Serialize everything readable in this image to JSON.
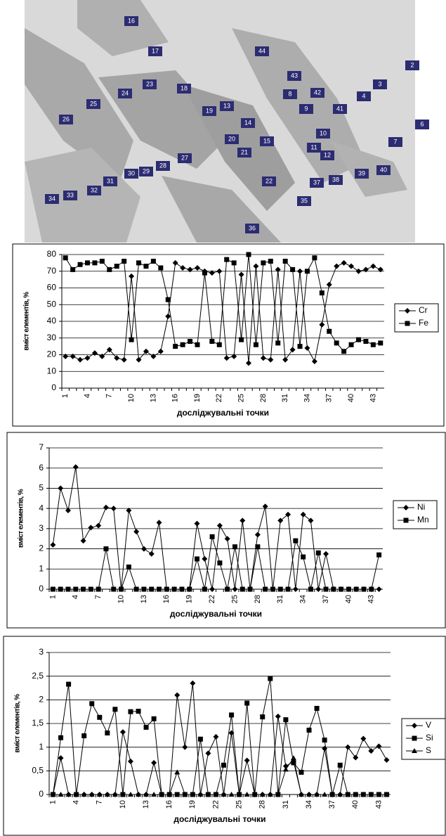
{
  "micrograph": {
    "labels": [
      "2",
      "3",
      "4",
      "6",
      "7",
      "8",
      "9",
      "10",
      "11",
      "12",
      "13",
      "14",
      "15",
      "16",
      "17",
      "18",
      "19",
      "20",
      "21",
      "22",
      "23",
      "24",
      "25",
      "26",
      "27",
      "28",
      "29",
      "30",
      "31",
      "32",
      "33",
      "34",
      "35",
      "36",
      "37",
      "38",
      "39",
      "40",
      "41",
      "42",
      "43",
      "44"
    ]
  },
  "chart_data": [
    {
      "type": "line",
      "ylabel": "вміст елементів, %",
      "xlabel": "досліджувальні точки",
      "categories": [
        "1",
        null,
        null,
        "4",
        null,
        null,
        "7",
        null,
        null,
        "10",
        null,
        null,
        "13",
        null,
        null,
        "16",
        null,
        null,
        "19",
        null,
        null,
        "22",
        null,
        null,
        "25",
        null,
        null,
        "28",
        null,
        null,
        "31",
        null,
        null,
        "34",
        null,
        null,
        "37",
        null,
        null,
        "40",
        null,
        null,
        "43",
        null
      ],
      "series": [
        {
          "name": "Cr",
          "color": "#000000",
          "marker": "diamond",
          "values": [
            19,
            19,
            17,
            18,
            21,
            19,
            23,
            18,
            17,
            67,
            17,
            22,
            19,
            22,
            43,
            75,
            72,
            71,
            72,
            70,
            69,
            70,
            18,
            19,
            68,
            15,
            73,
            18,
            17,
            71,
            17,
            23,
            70,
            24,
            16,
            38,
            62,
            73,
            75,
            73,
            70,
            71,
            73,
            71
          ]
        },
        {
          "name": "Fe",
          "color": "#000000",
          "marker": "square",
          "values": [
            78,
            71,
            74,
            75,
            75,
            76,
            71,
            73,
            76,
            29,
            75,
            73,
            76,
            72,
            53,
            25,
            26,
            28,
            26,
            69,
            28,
            26,
            77,
            75,
            29,
            80,
            26,
            75,
            76,
            27,
            76,
            71,
            25,
            70,
            78,
            57,
            34,
            27,
            22,
            26,
            29,
            28,
            26,
            27
          ]
        }
      ],
      "ylim": [
        0,
        80
      ],
      "yticks": [
        0,
        10,
        20,
        30,
        40,
        50,
        60,
        70,
        80
      ],
      "grid": true,
      "legend": "right"
    },
    {
      "type": "line",
      "ylabel": "вміст елементів, %",
      "xlabel": "досліджувальні точки",
      "categories": [
        "1",
        null,
        null,
        "4",
        null,
        null,
        "7",
        null,
        null,
        "10",
        null,
        null,
        "13",
        null,
        null,
        "16",
        null,
        null,
        "19",
        null,
        null,
        "22",
        null,
        null,
        "25",
        null,
        null,
        "28",
        null,
        null,
        "31",
        null,
        null,
        "34",
        null,
        null,
        "37",
        null,
        null,
        "40",
        null,
        null,
        "43",
        null
      ],
      "series": [
        {
          "name": "Ni",
          "color": "#000000",
          "marker": "diamond",
          "values": [
            2.2,
            5,
            3.9,
            6.05,
            2.4,
            3.05,
            3.15,
            4.05,
            4,
            0,
            3.9,
            2.85,
            2,
            1.75,
            3.3,
            0,
            0,
            0,
            0,
            3.25,
            1.5,
            0,
            3.15,
            2.5,
            0,
            3.4,
            0,
            2.7,
            4.1,
            0,
            3.4,
            3.7,
            0,
            3.7,
            3.4,
            0,
            1.75,
            0,
            0,
            0,
            0,
            0,
            0,
            0
          ]
        },
        {
          "name": "Mn",
          "color": "#000000",
          "marker": "square",
          "values": [
            0,
            0,
            0,
            0,
            0,
            0,
            0,
            2,
            0,
            0,
            1.1,
            0,
            0,
            0,
            0,
            0,
            0,
            0,
            0,
            1.5,
            0,
            2.6,
            1.3,
            0,
            2.1,
            0,
            0,
            2.1,
            0,
            0,
            0,
            0,
            2.4,
            1.6,
            0,
            1.8,
            0,
            0,
            0,
            0,
            0,
            0,
            0,
            1.7
          ]
        }
      ],
      "ylim": [
        0,
        7
      ],
      "yticks": [
        0,
        1,
        2,
        3,
        4,
        5,
        6,
        7
      ],
      "grid": true,
      "legend": "right"
    },
    {
      "type": "line",
      "ylabel": "вміст елементів, %",
      "xlabel": "досліджувальні точки",
      "categories": [
        "1",
        null,
        null,
        "4",
        null,
        null,
        "7",
        null,
        null,
        "10",
        null,
        null,
        "13",
        null,
        null,
        "16",
        null,
        null,
        "19",
        null,
        null,
        "22",
        null,
        null,
        "25",
        null,
        null,
        "28",
        null,
        null,
        "31",
        null,
        null,
        "34",
        null,
        null,
        "37",
        null,
        null,
        "40",
        null,
        null,
        "43",
        null
      ],
      "series": [
        {
          "name": "V",
          "color": "#000000",
          "marker": "diamond",
          "values": [
            0,
            0.77,
            0,
            0,
            0,
            0,
            0,
            0,
            0,
            1.32,
            0.7,
            0,
            0,
            0.67,
            0,
            0,
            2.1,
            1,
            2.35,
            0,
            0.87,
            1.22,
            0,
            1.3,
            0,
            0.72,
            0,
            0,
            0,
            1.65,
            0.6,
            0.7,
            0,
            0,
            0,
            0.97,
            0,
            0,
            1,
            0.78,
            1.18,
            0.92,
            1.02,
            0.73
          ]
        },
        {
          "name": "Si",
          "color": "#000000",
          "marker": "square",
          "values": [
            0,
            1.2,
            2.33,
            0,
            1.24,
            1.92,
            1.63,
            1.3,
            1.8,
            0,
            1.75,
            1.76,
            1.42,
            1.6,
            0,
            0,
            0,
            0,
            0,
            1.17,
            0,
            0,
            0.62,
            1.68,
            0,
            1.93,
            0,
            1.64,
            2.45,
            0,
            1.58,
            0.67,
            0.47,
            1.36,
            1.82,
            1.15,
            0,
            0.62,
            0,
            0,
            0,
            0,
            0,
            0
          ]
        },
        {
          "name": "S",
          "color": "#000000",
          "marker": "triangle",
          "values": [
            0,
            0,
            0,
            0,
            0,
            0,
            0,
            0,
            0,
            0,
            0,
            0,
            0,
            0,
            0,
            0,
            0.47,
            0,
            0,
            0,
            0,
            0,
            0,
            0,
            0,
            0,
            0,
            0,
            0,
            0,
            0.53,
            0.77,
            0,
            0,
            0,
            0,
            0,
            0,
            0,
            0,
            0,
            0,
            0,
            0
          ]
        }
      ],
      "ylim": [
        0,
        3
      ],
      "yticks": [
        0,
        {
          "value": 0.5,
          "label": "0,5"
        },
        1,
        {
          "value": 1.5,
          "label": "1,5"
        },
        2,
        {
          "value": 2.5,
          "label": "2,5"
        },
        3
      ],
      "grid": true,
      "legend": "right"
    }
  ]
}
